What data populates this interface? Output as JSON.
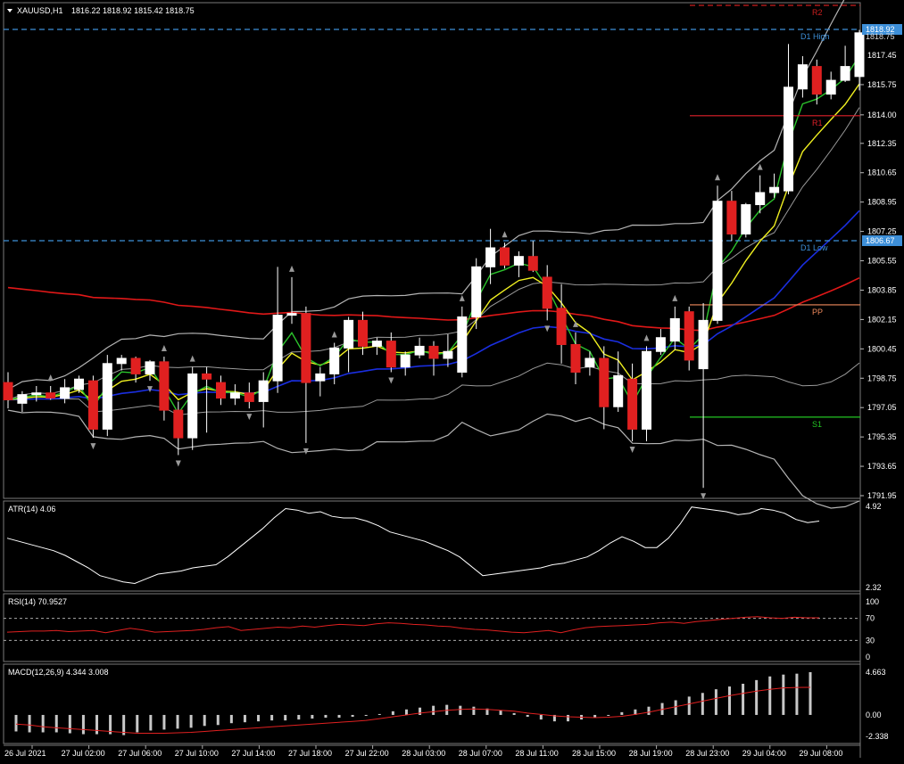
{
  "header": {
    "symbol": "XAUUSD,H1",
    "ohlc": "1816.22 1818.92 1815.42 1818.75"
  },
  "price_axis": {
    "ticks": [
      "1817.45",
      "1815.75",
      "1814.00",
      "1812.35",
      "1810.65",
      "1808.95",
      "1807.25",
      "1805.55",
      "1803.85",
      "1802.15",
      "1800.45",
      "1798.75",
      "1797.05",
      "1795.35",
      "1793.65",
      "1791.95"
    ],
    "current_price_tag": "1818.92",
    "current_price_tag_under": "1818.75",
    "low_tag": "1806.67"
  },
  "levels": [
    {
      "name": "R2",
      "label": "R2",
      "price": 1820.2,
      "color": "#cc1f1f",
      "dashed": true
    },
    {
      "name": "D1 High",
      "label": "D1 High",
      "price": 1818.55,
      "color": "#3d8fd8",
      "dashed": true
    },
    {
      "name": "R1",
      "label": "R1",
      "price": 1813.95,
      "color": "#e0202a",
      "dashed": false
    },
    {
      "name": "D1 Low",
      "label": "D1 Low",
      "price": 1806.67,
      "color": "#3d8fd8",
      "dashed": true
    },
    {
      "name": "PP",
      "label": "PP",
      "price": 1803.0,
      "color": "#f08a5c",
      "dashed": false
    },
    {
      "name": "S1",
      "label": "S1",
      "price": 1796.5,
      "color": "#22c422",
      "dashed": false
    }
  ],
  "time_axis": {
    "labels": [
      "26 Jul 2021",
      "27 Jul 02:00",
      "27 Jul 06:00",
      "27 Jul 10:00",
      "27 Jul 14:00",
      "27 Jul 18:00",
      "27 Jul 22:00",
      "28 Jul 03:00",
      "28 Jul 07:00",
      "28 Jul 11:00",
      "28 Jul 15:00",
      "28 Jul 19:00",
      "28 Jul 23:00",
      "29 Jul 04:00",
      "29 Jul 08:00"
    ]
  },
  "atr": {
    "title": "ATR(14) 4.06",
    "ticks": [
      "4.92",
      "2.32"
    ],
    "values": [
      3.9,
      3.8,
      3.7,
      3.6,
      3.5,
      3.35,
      3.15,
      2.95,
      2.7,
      2.6,
      2.5,
      2.45,
      2.6,
      2.75,
      2.8,
      2.85,
      2.95,
      3.0,
      3.05,
      3.3,
      3.6,
      3.9,
      4.2,
      4.55,
      4.85,
      4.8,
      4.7,
      4.75,
      4.6,
      4.55,
      4.55,
      4.45,
      4.3,
      4.1,
      4.0,
      3.9,
      3.8,
      3.65,
      3.5,
      3.3,
      3.0,
      2.7,
      2.75,
      2.8,
      2.85,
      2.9,
      2.95,
      3.05,
      3.1,
      3.2,
      3.3,
      3.5,
      3.75,
      3.95,
      3.8,
      3.6,
      3.6,
      3.9,
      4.35,
      4.9,
      4.85,
      4.8,
      4.75,
      4.65,
      4.7,
      4.85,
      4.8,
      4.7,
      4.5,
      4.4,
      4.45
    ]
  },
  "rsi": {
    "title": "RSI(14) 70.9527",
    "ticks": [
      "100",
      "70",
      "30",
      "0"
    ],
    "values": [
      45,
      46,
      47,
      47,
      48,
      46,
      47,
      48,
      44,
      48,
      52,
      49,
      45,
      46,
      47,
      48,
      50,
      53,
      55,
      48,
      50,
      52,
      54,
      53,
      56,
      54,
      57,
      59,
      58,
      57,
      60,
      62,
      61,
      59,
      58,
      56,
      55,
      52,
      50,
      49,
      47,
      45,
      44,
      46,
      48,
      44,
      49,
      53,
      55,
      56,
      57,
      58,
      59,
      62,
      63,
      61,
      64,
      66,
      68,
      70,
      72,
      73,
      71,
      70,
      72,
      71,
      71
    ]
  },
  "macd": {
    "title": "MACD(12,26,9) 4.344 3.008",
    "ticks": [
      "4.663",
      "0.00",
      "-2.338"
    ],
    "hist": [
      -1.8,
      -1.9,
      -1.9,
      -1.9,
      -2.0,
      -2.1,
      -2.1,
      -2.1,
      -2.2,
      -1.9,
      -1.7,
      -1.6,
      -1.5,
      -1.4,
      -1.2,
      -1.1,
      -0.9,
      -0.8,
      -0.7,
      -0.6,
      -0.6,
      -0.5,
      -0.4,
      -0.3,
      -0.3,
      -0.2,
      -0.1,
      0.1,
      0.4,
      0.6,
      0.8,
      1.0,
      1.1,
      1.0,
      0.9,
      0.7,
      0.5,
      0.2,
      -0.2,
      -0.5,
      -0.7,
      -0.7,
      -0.5,
      -0.3,
      -0.1,
      0.3,
      0.6,
      0.9,
      1.3,
      1.6,
      2.0,
      2.4,
      2.8,
      3.1,
      3.4,
      3.8,
      4.2,
      4.4,
      4.5,
      4.663
    ],
    "signal": [
      -1.0,
      -1.1,
      -1.3,
      -1.4,
      -1.5,
      -1.6,
      -1.7,
      -1.8,
      -1.9,
      -2.0,
      -2.0,
      -2.0,
      -1.95,
      -1.9,
      -1.8,
      -1.7,
      -1.6,
      -1.5,
      -1.4,
      -1.3,
      -1.2,
      -1.1,
      -1.0,
      -0.9,
      -0.8,
      -0.7,
      -0.6,
      -0.4,
      -0.2,
      0.0,
      0.2,
      0.35,
      0.5,
      0.6,
      0.65,
      0.6,
      0.5,
      0.4,
      0.2,
      0.05,
      -0.1,
      -0.2,
      -0.25,
      -0.3,
      -0.25,
      -0.15,
      0.05,
      0.3,
      0.6,
      0.9,
      1.2,
      1.5,
      1.8,
      2.1,
      2.35,
      2.6,
      2.8,
      2.95,
      3.0,
      3.008
    ]
  },
  "chart_data": {
    "type": "candlestick",
    "title": "XAUUSD,H1",
    "ylim": [
      1791.95,
      1819.5
    ],
    "candles": [
      [
        1798.5,
        1799.1,
        1797.0,
        1797.5
      ],
      [
        1797.3,
        1798.0,
        1796.8,
        1797.8
      ],
      [
        1797.8,
        1798.3,
        1797.4,
        1797.9
      ],
      [
        1797.9,
        1798.3,
        1797.5,
        1797.6
      ],
      [
        1797.6,
        1798.7,
        1797.3,
        1798.2
      ],
      [
        1798.1,
        1798.9,
        1797.9,
        1798.7
      ],
      [
        1798.6,
        1798.9,
        1795.3,
        1795.8
      ],
      [
        1795.8,
        1800.1,
        1795.4,
        1799.6
      ],
      [
        1799.6,
        1800.1,
        1799.2,
        1799.9
      ],
      [
        1799.9,
        1800.0,
        1798.5,
        1799.0
      ],
      [
        1799.0,
        1799.8,
        1798.6,
        1799.7
      ],
      [
        1799.7,
        1800.0,
        1796.3,
        1796.9
      ],
      [
        1796.9,
        1797.4,
        1794.3,
        1795.3
      ],
      [
        1795.3,
        1799.4,
        1794.6,
        1799.0
      ],
      [
        1799.0,
        1799.4,
        1795.6,
        1798.7
      ],
      [
        1798.5,
        1798.9,
        1797.2,
        1797.6
      ],
      [
        1797.6,
        1798.4,
        1797.2,
        1797.9
      ],
      [
        1797.9,
        1798.5,
        1797.0,
        1797.4
      ],
      [
        1797.4,
        1799.1,
        1795.9,
        1798.6
      ],
      [
        1798.6,
        1805.2,
        1797.9,
        1802.4
      ],
      [
        1802.4,
        1804.6,
        1801.9,
        1802.5
      ],
      [
        1802.5,
        1802.9,
        1795.0,
        1798.5
      ],
      [
        1798.6,
        1799.4,
        1797.7,
        1799.0
      ],
      [
        1799.0,
        1800.8,
        1798.4,
        1800.5
      ],
      [
        1800.5,
        1802.3,
        1799.1,
        1802.1
      ],
      [
        1802.1,
        1802.6,
        1800.1,
        1800.6
      ],
      [
        1800.6,
        1801.1,
        1800.1,
        1800.9
      ],
      [
        1800.9,
        1801.4,
        1799.1,
        1799.4
      ],
      [
        1799.4,
        1800.3,
        1798.9,
        1800.1
      ],
      [
        1800.1,
        1801.1,
        1799.9,
        1800.6
      ],
      [
        1800.6,
        1800.9,
        1798.9,
        1799.9
      ],
      [
        1799.9,
        1801.3,
        1799.4,
        1800.3
      ],
      [
        1799.1,
        1802.9,
        1798.8,
        1802.3
      ],
      [
        1802.3,
        1805.7,
        1801.6,
        1805.2
      ],
      [
        1805.2,
        1807.4,
        1804.2,
        1806.3
      ],
      [
        1806.3,
        1806.6,
        1805.1,
        1805.3
      ],
      [
        1805.3,
        1806.1,
        1804.6,
        1805.8
      ],
      [
        1805.8,
        1806.7,
        1804.9,
        1805.0
      ],
      [
        1804.6,
        1805.3,
        1802.1,
        1802.8
      ],
      [
        1802.8,
        1804.2,
        1799.6,
        1800.7
      ],
      [
        1800.7,
        1801.4,
        1798.4,
        1799.1
      ],
      [
        1799.4,
        1800.3,
        1798.9,
        1799.9
      ],
      [
        1799.9,
        1800.6,
        1795.8,
        1797.1
      ],
      [
        1797.1,
        1800.3,
        1796.8,
        1798.9
      ],
      [
        1798.7,
        1799.6,
        1795.1,
        1795.8
      ],
      [
        1795.8,
        1800.6,
        1795.1,
        1800.3
      ],
      [
        1800.3,
        1801.6,
        1800.1,
        1801.1
      ],
      [
        1800.9,
        1802.9,
        1800.4,
        1802.2
      ],
      [
        1802.6,
        1802.9,
        1799.2,
        1799.8
      ],
      [
        1799.3,
        1803.1,
        1792.4,
        1802.1
      ],
      [
        1802.1,
        1809.9,
        1801.9,
        1809.0
      ],
      [
        1809.0,
        1809.6,
        1806.7,
        1807.1
      ],
      [
        1807.1,
        1808.9,
        1806.9,
        1808.8
      ],
      [
        1808.8,
        1810.5,
        1808.3,
        1809.5
      ],
      [
        1809.5,
        1810.6,
        1809.2,
        1809.8
      ],
      [
        1809.6,
        1818.1,
        1809.4,
        1815.6
      ],
      [
        1815.5,
        1817.4,
        1815.0,
        1816.9
      ],
      [
        1816.8,
        1817.2,
        1814.6,
        1815.2
      ],
      [
        1815.2,
        1816.5,
        1814.9,
        1816.0
      ],
      [
        1816.0,
        1818.0,
        1815.9,
        1816.8
      ],
      [
        1816.22,
        1818.92,
        1815.42,
        1818.75
      ]
    ]
  }
}
